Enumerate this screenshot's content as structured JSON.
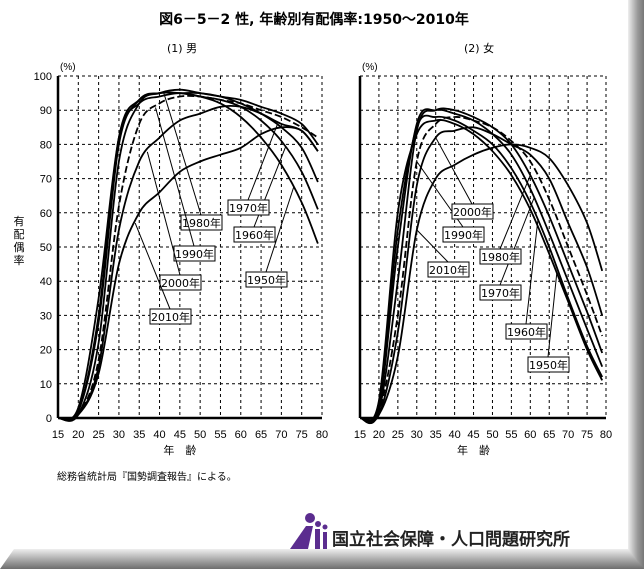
{
  "title": "図6－5－2 性, 年齢別有配偶率:1950～2010年",
  "source": "総務省統計局『国勢調査報告』による。",
  "logo_text": "国立社会保障・人口問題研究所",
  "chart_data": [
    {
      "type": "line",
      "title": "(1) 男",
      "xlabel": "年　齢",
      "ylabel": "有配偶率",
      "yunit": "(%)",
      "x": [
        15,
        20,
        25,
        30,
        35,
        40,
        45,
        50,
        55,
        60,
        65,
        70,
        75,
        80
      ],
      "xticks": [
        "15",
        "20",
        "25",
        "30",
        "35",
        "40",
        "45",
        "50",
        "55",
        "60",
        "65",
        "70",
        "75",
        "80"
      ],
      "yticks": [
        "0",
        "10",
        "20",
        "30",
        "40",
        "50",
        "60",
        "70",
        "80",
        "90",
        "100"
      ],
      "xlim": [
        15,
        80
      ],
      "ylim": [
        0,
        100
      ],
      "grid": true,
      "series": [
        {
          "name": "1950年",
          "values": [
            0,
            3,
            35,
            82,
            92,
            94,
            95,
            94,
            92,
            88,
            82,
            74,
            63,
            51
          ]
        },
        {
          "name": "1960年",
          "values": [
            0,
            2,
            30,
            82,
            93,
            95,
            95,
            94,
            93,
            91,
            87,
            81,
            72,
            61
          ]
        },
        {
          "name": "1970年",
          "values": [
            0,
            2,
            28,
            80,
            93,
            95,
            95,
            95,
            94,
            92,
            89,
            85,
            79,
            69
          ]
        },
        {
          "name": "1980年",
          "values": [
            0,
            1,
            22,
            75,
            92,
            95,
            96,
            95,
            94,
            93,
            91,
            89,
            86,
            80
          ]
        },
        {
          "name": "1990年",
          "values": [
            0,
            1,
            17,
            62,
            86,
            92,
            94,
            94,
            93,
            92,
            90,
            88,
            85,
            82
          ]
        },
        {
          "name": "2000年",
          "values": [
            0,
            1,
            15,
            55,
            75,
            82,
            87,
            89,
            91,
            91,
            89,
            86,
            84,
            78
          ]
        },
        {
          "name": "2010年",
          "values": [
            0,
            1,
            13,
            45,
            60,
            66,
            72,
            75,
            77,
            79,
            83,
            85,
            84,
            78
          ]
        }
      ]
    },
    {
      "type": "line",
      "title": "(2) 女",
      "xlabel": "年　齢",
      "yunit": "(%)",
      "x": [
        15,
        20,
        25,
        30,
        35,
        40,
        45,
        50,
        55,
        60,
        65,
        70,
        75,
        80
      ],
      "xticks": [
        "15",
        "20",
        "25",
        "30",
        "35",
        "40",
        "45",
        "50",
        "55",
        "60",
        "65",
        "70",
        "75",
        "80"
      ],
      "xlim": [
        15,
        80
      ],
      "ylim": [
        0,
        100
      ],
      "grid": true,
      "series": [
        {
          "name": "1950年",
          "values": [
            0,
            5,
            60,
            83,
            87,
            86,
            83,
            78,
            71,
            61,
            48,
            34,
            20,
            11
          ]
        },
        {
          "name": "1960年",
          "values": [
            0,
            4,
            55,
            85,
            88,
            87,
            84,
            80,
            73,
            63,
            50,
            35,
            21,
            12
          ]
        },
        {
          "name": "1970年",
          "values": [
            0,
            3,
            50,
            86,
            90,
            89,
            87,
            83,
            77,
            67,
            54,
            40,
            26,
            15
          ]
        },
        {
          "name": "1980年",
          "values": [
            0,
            2,
            40,
            84,
            90,
            90,
            88,
            85,
            80,
            71,
            59,
            45,
            31,
            19
          ]
        },
        {
          "name": "1990年",
          "values": [
            0,
            2,
            30,
            75,
            86,
            88,
            87,
            85,
            81,
            75,
            64,
            50,
            36,
            24
          ]
        },
        {
          "name": "2000年",
          "values": [
            0,
            1,
            25,
            68,
            82,
            84,
            85,
            83,
            80,
            77,
            70,
            57,
            44,
            30
          ]
        },
        {
          "name": "2010年",
          "values": [
            0,
            1,
            18,
            55,
            70,
            74,
            77,
            79,
            80,
            79,
            76,
            68,
            57,
            43
          ]
        }
      ]
    }
  ]
}
